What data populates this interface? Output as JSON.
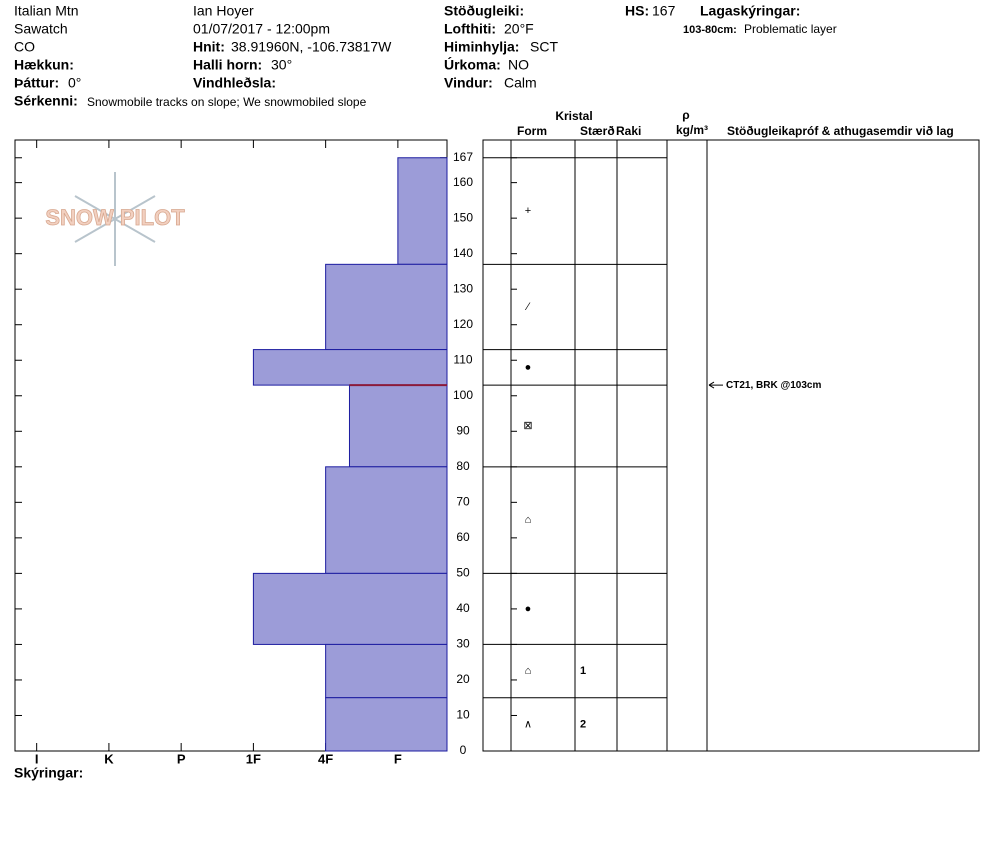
{
  "site": {
    "name": "Italian Mtn",
    "range": "Sawatch",
    "state": "CO",
    "elevation_label": "Hækkun:",
    "aspect_label": "Þáttur:",
    "aspect": "0°",
    "features_label": "Sérkenni:",
    "features": "Snowmobile tracks on slope; We snowmobiled slope"
  },
  "observer": {
    "name": "Ian Hoyer",
    "datetime": "01/07/2017 - 12:00pm",
    "coords_label": "Hnit:",
    "coords": "38.91960N, -106.73817W",
    "slope_label": "Halli horn:",
    "slope": "30°",
    "wind_loading_label": "Vindhleðsla:"
  },
  "weather": {
    "stability_label": "Stöðugleiki:",
    "air_temp_label": "Lofthiti:",
    "air_temp": "20°F",
    "sky_label": "Himinhylja:",
    "sky": "SCT",
    "precip_label": "Úrkoma:",
    "precip": "NO",
    "wind_label": "Vindur:",
    "wind": "Calm"
  },
  "snow": {
    "hs_label": "HS:",
    "hs": 167,
    "layer_notes_label": "Lagaskýringar:",
    "layer_notes": [
      {
        "range": "103-80cm:",
        "note": "Problematic layer"
      }
    ]
  },
  "notes_label": "Skýringar:",
  "logo": "SNOW PILOT",
  "chart_data": {
    "type": "snow_profile",
    "xlim": [
      6.3,
      0.32
    ],
    "xticks": [
      {
        "value": 6,
        "label": "I"
      },
      {
        "value": 5,
        "label": "K"
      },
      {
        "value": 4,
        "label": "P"
      },
      {
        "value": 3,
        "label": "1F"
      },
      {
        "value": 2,
        "label": "4F"
      },
      {
        "value": 1,
        "label": "F"
      }
    ],
    "ylim": [
      0,
      172
    ],
    "yticks": [
      0,
      10,
      20,
      30,
      40,
      50,
      60,
      70,
      80,
      90,
      100,
      110,
      120,
      130,
      140,
      150,
      160,
      167
    ],
    "color": "#9c9cd8",
    "edge_color": "#1c1ca0",
    "problem_depth": 103,
    "problem_color": "#8b1a3a",
    "columns": {
      "crystal": "Kristal",
      "form": "Form",
      "size": "Stærð",
      "moisture": "Raki",
      "density_symbol": "ρ",
      "density_unit": "kg/m³",
      "tests": "Stöðugleikapróf & athugasemdir við lag"
    },
    "layers": [
      {
        "top": 167,
        "bottom": 137,
        "hardness": 1,
        "form": "+",
        "size": null
      },
      {
        "top": 137,
        "bottom": 113,
        "hardness": 2,
        "form": "⁄",
        "size": null
      },
      {
        "top": 113,
        "bottom": 103,
        "hardness": 3,
        "form": "●",
        "size": null
      },
      {
        "top": 103,
        "bottom": 80,
        "hardness": 1.67,
        "form": "⊠",
        "size": null
      },
      {
        "top": 80,
        "bottom": 50,
        "hardness": 2,
        "form": "⌂",
        "size": null
      },
      {
        "top": 50,
        "bottom": 30,
        "hardness": 3,
        "form": "●",
        "size": null
      },
      {
        "top": 30,
        "bottom": 15,
        "hardness": 2,
        "form": "⌂",
        "size": 1
      },
      {
        "top": 15,
        "bottom": 0,
        "hardness": 2,
        "form": "∧",
        "size": 2
      }
    ],
    "tests": [
      {
        "depth": 103,
        "label": "CT21, BRK @103cm"
      }
    ]
  }
}
